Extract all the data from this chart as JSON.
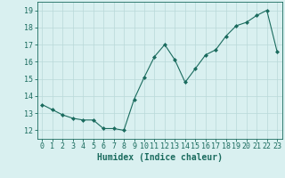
{
  "x": [
    0,
    1,
    2,
    3,
    4,
    5,
    6,
    7,
    8,
    9,
    10,
    11,
    12,
    13,
    14,
    15,
    16,
    17,
    18,
    19,
    20,
    21,
    22,
    23
  ],
  "y": [
    13.5,
    13.2,
    12.9,
    12.7,
    12.6,
    12.6,
    12.1,
    12.1,
    12.0,
    13.8,
    15.1,
    16.3,
    17.0,
    16.1,
    14.8,
    15.6,
    16.4,
    16.7,
    17.5,
    18.1,
    18.3,
    18.7,
    19.0,
    16.6
  ],
  "line_color": "#1a6b5e",
  "marker": "D",
  "marker_size": 2.0,
  "bg_color": "#d9f0f0",
  "grid_color": "#b8d8d8",
  "xlabel": "Humidex (Indice chaleur)",
  "xlim": [
    -0.5,
    23.5
  ],
  "ylim": [
    11.5,
    19.5
  ],
  "yticks": [
    12,
    13,
    14,
    15,
    16,
    17,
    18,
    19
  ],
  "xticks": [
    0,
    1,
    2,
    3,
    4,
    5,
    6,
    7,
    8,
    9,
    10,
    11,
    12,
    13,
    14,
    15,
    16,
    17,
    18,
    19,
    20,
    21,
    22,
    23
  ],
  "xlabel_fontsize": 7,
  "tick_fontsize": 6,
  "label_color": "#1a6b5e",
  "spine_color": "#1a6b5e",
  "linewidth": 0.8
}
